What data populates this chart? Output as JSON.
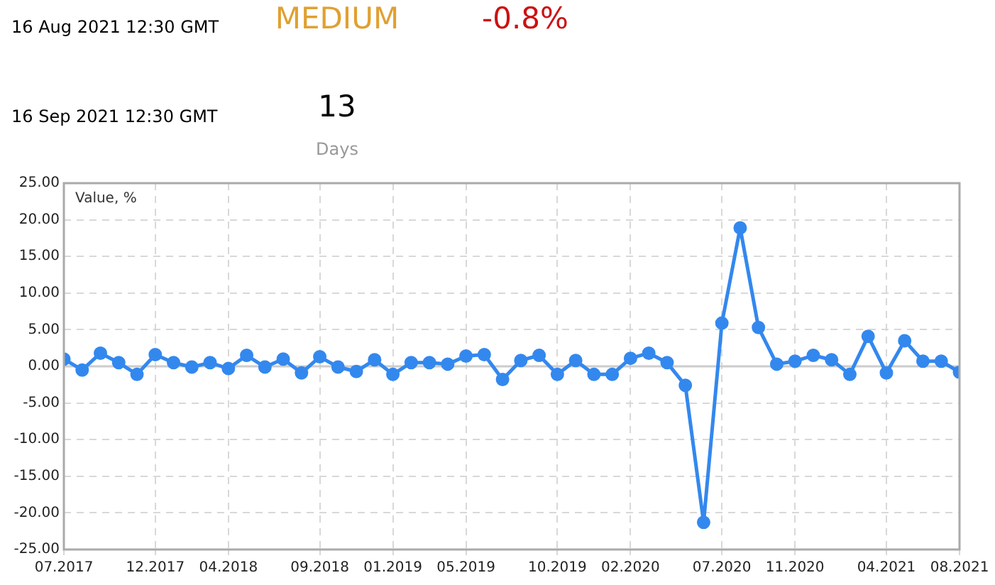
{
  "chart_data": {
    "type": "line",
    "annotations": [
      "16 Aug 2021 12:30 GMT",
      "MEDIUM",
      "-0.8%",
      "16 Sep 2021 12:30 GMT",
      "13",
      "Days"
    ],
    "ylabel": "Value, %",
    "x": [
      "2017-07",
      "2017-08",
      "2017-09",
      "2017-10",
      "2017-11",
      "2017-12",
      "2018-01",
      "2018-02",
      "2018-03",
      "2018-04",
      "2018-05",
      "2018-06",
      "2018-07",
      "2018-08",
      "2018-09",
      "2018-10",
      "2018-11",
      "2018-12",
      "2019-01",
      "2019-02",
      "2019-03",
      "2019-04",
      "2019-05",
      "2019-06",
      "2019-07",
      "2019-08",
      "2019-09",
      "2019-10",
      "2019-11",
      "2019-12",
      "2020-01",
      "2020-02",
      "2020-03",
      "2020-04",
      "2020-05",
      "2020-06",
      "2020-07",
      "2020-08",
      "2020-09",
      "2020-10",
      "2020-11",
      "2020-12",
      "2021-01",
      "2021-02",
      "2021-03",
      "2021-04",
      "2021-05",
      "2021-06",
      "2021-07",
      "2021-08"
    ],
    "series": [
      {
        "color": "#3388ee",
        "values": [
          1.0,
          -0.5,
          1.8,
          0.5,
          -1.1,
          1.6,
          0.5,
          -0.1,
          0.5,
          -0.3,
          1.5,
          -0.1,
          1.0,
          -0.9,
          1.3,
          -0.1,
          -0.7,
          0.9,
          -1.1,
          0.5,
          0.5,
          0.3,
          1.4,
          1.6,
          -1.8,
          0.8,
          1.5,
          -1.1,
          0.8,
          -1.1,
          -1.1,
          1.1,
          1.8,
          0.5,
          -2.6,
          -21.3,
          5.9,
          18.9,
          5.3,
          0.3,
          0.7,
          1.5,
          0.9,
          -1.1,
          4.1,
          -0.9,
          3.5,
          0.7,
          0.7,
          -0.8
        ]
      }
    ],
    "xlim": [
      "2017-07",
      "2021-08"
    ],
    "xticks": [
      {
        "value": "2017-07",
        "label": "07.2017"
      },
      {
        "value": "2017-12",
        "label": "12.2017"
      },
      {
        "value": "2018-04",
        "label": "04.2018"
      },
      {
        "value": "2018-09",
        "label": "09.2018"
      },
      {
        "value": "2019-01",
        "label": "01.2019"
      },
      {
        "value": "2019-05",
        "label": "05.2019"
      },
      {
        "value": "2019-10",
        "label": "10.2019"
      },
      {
        "value": "2020-02",
        "label": "02.2020"
      },
      {
        "value": "2020-07",
        "label": "07.2020"
      },
      {
        "value": "2020-11",
        "label": "11.2020"
      },
      {
        "value": "2021-04",
        "label": "04.2021"
      },
      {
        "value": "2021-08",
        "label": "08.2021"
      }
    ],
    "ylim": [
      -25,
      25
    ],
    "yticks": [
      {
        "value": -25,
        "label": "-25.00"
      },
      {
        "value": -20,
        "label": "-20.00"
      },
      {
        "value": -15,
        "label": "-15.00"
      },
      {
        "value": -10,
        "label": "-10.00"
      },
      {
        "value": -5,
        "label": "-5.00"
      },
      {
        "value": 0,
        "label": "0.00"
      },
      {
        "value": 5,
        "label": "5.00"
      },
      {
        "value": 10,
        "label": "10.00"
      },
      {
        "value": 15,
        "label": "15.00"
      },
      {
        "value": 20,
        "label": "20.00"
      },
      {
        "value": 25,
        "label": "25.00"
      }
    ],
    "ref_lines": [
      {
        "axis": "y",
        "value": 0,
        "color": "#cccccc"
      }
    ],
    "grid": true,
    "legend": false,
    "marker": "circle"
  }
}
